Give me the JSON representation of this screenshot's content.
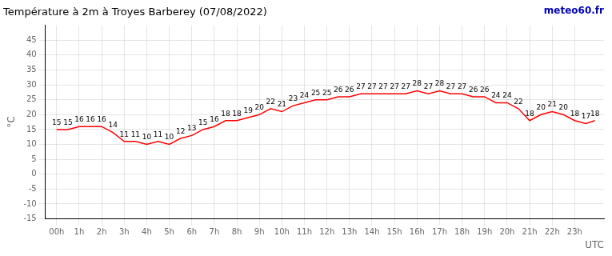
{
  "chart_data": {
    "type": "line",
    "title": "Température à 2m à Troyes Barberey (07/08/2022)",
    "xlabel": "UTC",
    "ylabel": "°C",
    "annotations": [
      {
        "text": "meteo60.fr",
        "color": "#0000bb"
      }
    ],
    "x": [
      0,
      0.5,
      1,
      1.5,
      2,
      2.5,
      3,
      3.5,
      4,
      4.5,
      5,
      5.5,
      6,
      6.5,
      7,
      7.5,
      8,
      8.5,
      9,
      9.5,
      10,
      10.5,
      11,
      11.5,
      12,
      12.5,
      13,
      13.5,
      14,
      14.5,
      15,
      15.5,
      16,
      16.5,
      17,
      17.5,
      18,
      18.5,
      19,
      19.5,
      20,
      20.5,
      21,
      21.5,
      22,
      22.5,
      23,
      23.5,
      23.9
    ],
    "values": [
      15,
      15,
      16,
      16,
      16,
      14,
      11,
      11,
      10,
      11,
      10,
      12,
      13,
      15,
      16,
      18,
      18,
      19,
      20,
      22,
      21,
      23,
      24,
      25,
      25,
      26,
      26,
      27,
      27,
      27,
      27,
      27,
      28,
      27,
      28,
      27,
      27,
      26,
      26,
      24,
      24,
      22,
      18,
      20,
      21,
      20,
      18,
      17,
      18
    ],
    "color": "#ff0000",
    "data_labels": true,
    "grid": true,
    "xlim": [
      -0.5,
      24.3
    ],
    "xticks": [
      {
        "value": 0,
        "label": "00h"
      },
      {
        "value": 1,
        "label": "1h"
      },
      {
        "value": 2,
        "label": "2h"
      },
      {
        "value": 3,
        "label": "3h"
      },
      {
        "value": 4,
        "label": "4h"
      },
      {
        "value": 5,
        "label": "5h"
      },
      {
        "value": 6,
        "label": "6h"
      },
      {
        "value": 7,
        "label": "7h"
      },
      {
        "value": 8,
        "label": "8h"
      },
      {
        "value": 9,
        "label": "9h"
      },
      {
        "value": 10,
        "label": "10h"
      },
      {
        "value": 11,
        "label": "11h"
      },
      {
        "value": 12,
        "label": "12h"
      },
      {
        "value": 13,
        "label": "13h"
      },
      {
        "value": 14,
        "label": "14h"
      },
      {
        "value": 15,
        "label": "15h"
      },
      {
        "value": 16,
        "label": "16h"
      },
      {
        "value": 17,
        "label": "17h"
      },
      {
        "value": 18,
        "label": "18h"
      },
      {
        "value": 19,
        "label": "19h"
      },
      {
        "value": 20,
        "label": "20h"
      },
      {
        "value": 21,
        "label": "21h"
      },
      {
        "value": 22,
        "label": "22h"
      },
      {
        "value": 23,
        "label": "23h"
      }
    ],
    "ylim": [
      -15,
      50
    ],
    "yticks": [
      -15,
      -10,
      -5,
      0,
      5,
      10,
      15,
      20,
      25,
      30,
      35,
      40,
      45
    ]
  }
}
